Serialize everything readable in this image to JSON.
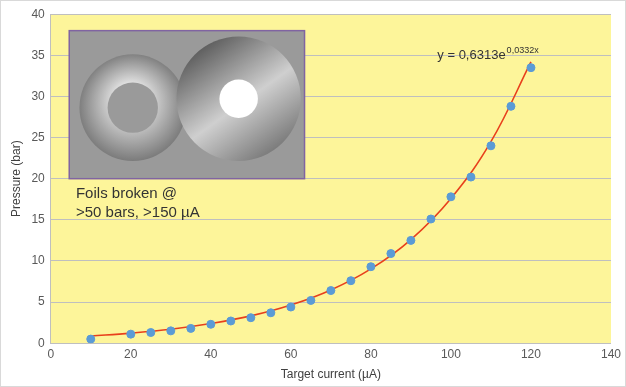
{
  "chart_data": {
    "type": "scatter",
    "x_label": "Target current (µA)",
    "y_label": "Pressure (bar)",
    "equation": {
      "base": "y = 0,6313e",
      "exponent": "0,0332x"
    },
    "annotations": [
      "Foils broken @",
      ">50 bars, >150 µA"
    ],
    "series": [
      {
        "type": "scatter",
        "color": "#5b9bd5",
        "marker": "circle",
        "x": [
          10,
          20,
          25,
          30,
          35,
          40,
          45,
          50,
          55,
          60,
          65,
          70,
          75,
          80,
          85,
          90,
          95,
          100,
          105,
          110,
          115,
          120
        ],
        "values": [
          0.5,
          1.1,
          1.3,
          1.5,
          1.8,
          2.3,
          2.7,
          3.1,
          3.7,
          4.4,
          5.2,
          6.4,
          7.6,
          9.3,
          10.9,
          12.5,
          15.1,
          17.8,
          20.2,
          24.0,
          28.8,
          33.5
        ]
      },
      {
        "type": "line",
        "color": "#e8401c",
        "marker": "none",
        "line_style": "solid",
        "x": [
          10,
          20,
          30,
          40,
          50,
          60,
          70,
          80,
          90,
          100,
          110,
          120
        ],
        "values": [
          0.88,
          1.23,
          1.7,
          2.39,
          3.32,
          4.64,
          6.47,
          9.03,
          12.6,
          17.6,
          24.5,
          34.2
        ]
      }
    ],
    "xlim": [
      0,
      140
    ],
    "xticks": [
      0,
      20,
      40,
      60,
      80,
      100,
      120,
      140
    ],
    "ylim": [
      0,
      40
    ],
    "yticks": [
      0,
      5,
      10,
      15,
      20,
      25,
      30,
      35,
      40
    ],
    "grid": "y"
  }
}
